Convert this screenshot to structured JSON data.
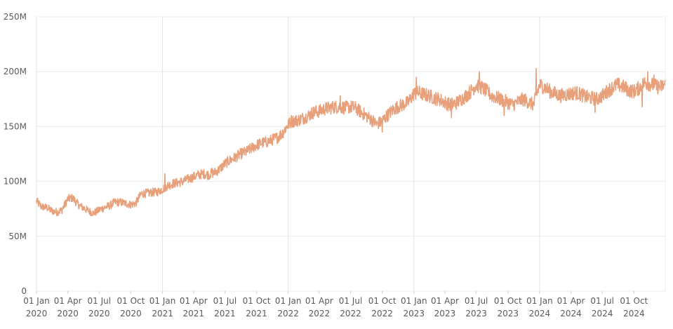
{
  "chart_data": {
    "type": "line",
    "y_tick_labels": [
      "0",
      "50M",
      "100M",
      "150M",
      "200M",
      "250M"
    ],
    "y_tick_values": [
      0,
      50,
      100,
      150,
      200,
      250
    ],
    "ylim": [
      0,
      250
    ],
    "y_unit": "M",
    "x_tick_labels": [
      {
        "top": "01 Jan",
        "bottom": "2020",
        "date": "2020-01-01"
      },
      {
        "top": "01 Apr",
        "bottom": "2020",
        "date": "2020-04-01"
      },
      {
        "top": "01 Jul",
        "bottom": "2020",
        "date": "2020-07-01"
      },
      {
        "top": "01 Oct",
        "bottom": "2020",
        "date": "2020-10-01"
      },
      {
        "top": "01 Jan",
        "bottom": "2021",
        "date": "2021-01-01"
      },
      {
        "top": "01 Apr",
        "bottom": "2021",
        "date": "2021-04-01"
      },
      {
        "top": "01 Jul",
        "bottom": "2021",
        "date": "2021-07-01"
      },
      {
        "top": "01 Oct",
        "bottom": "2021",
        "date": "2021-10-01"
      },
      {
        "top": "01 Jan",
        "bottom": "2022",
        "date": "2022-01-01"
      },
      {
        "top": "01 Apr",
        "bottom": "2022",
        "date": "2022-04-01"
      },
      {
        "top": "01 Jul",
        "bottom": "2022",
        "date": "2022-07-01"
      },
      {
        "top": "01 Oct",
        "bottom": "2022",
        "date": "2022-10-01"
      },
      {
        "top": "01 Jan",
        "bottom": "2023",
        "date": "2023-01-01"
      },
      {
        "top": "01 Apr",
        "bottom": "2023",
        "date": "2023-04-01"
      },
      {
        "top": "01 Jul",
        "bottom": "2023",
        "date": "2023-07-01"
      },
      {
        "top": "01 Oct",
        "bottom": "2023",
        "date": "2023-10-01"
      },
      {
        "top": "01 Jan",
        "bottom": "2024",
        "date": "2024-01-01"
      },
      {
        "top": "01 Apr",
        "bottom": "2024",
        "date": "2024-04-01"
      },
      {
        "top": "01 Jul",
        "bottom": "2024",
        "date": "2024-07-01"
      },
      {
        "top": "01 Oct",
        "bottom": "2024",
        "date": "2024-10-01"
      }
    ],
    "x_range": [
      "2020-01-01",
      "2024-12-31"
    ],
    "vertical_grid_years": [
      "2020-01-01",
      "2021-01-01",
      "2022-01-01",
      "2023-01-01",
      "2024-01-01"
    ],
    "grid": true,
    "legend": "none",
    "series": [
      {
        "color": "#e8a07a",
        "points": [
          [
            "2020-01-01",
            82
          ],
          [
            "2020-01-15",
            77
          ],
          [
            "2020-02-01",
            76
          ],
          [
            "2020-02-15",
            73
          ],
          [
            "2020-03-01",
            72
          ],
          [
            "2020-03-15",
            74
          ],
          [
            "2020-04-01",
            84
          ],
          [
            "2020-04-15",
            85
          ],
          [
            "2020-05-01",
            79
          ],
          [
            "2020-05-15",
            76
          ],
          [
            "2020-06-01",
            73
          ],
          [
            "2020-06-15",
            71
          ],
          [
            "2020-07-01",
            74
          ],
          [
            "2020-07-15",
            76
          ],
          [
            "2020-08-01",
            78
          ],
          [
            "2020-08-15",
            81
          ],
          [
            "2020-09-01",
            81
          ],
          [
            "2020-09-15",
            80
          ],
          [
            "2020-10-01",
            79
          ],
          [
            "2020-10-15",
            80
          ],
          [
            "2020-11-01",
            89
          ],
          [
            "2020-11-15",
            89
          ],
          [
            "2020-12-01",
            90
          ],
          [
            "2020-12-15",
            90
          ],
          [
            "2021-01-01",
            93
          ],
          [
            "2021-01-15",
            96
          ],
          [
            "2021-02-01",
            98
          ],
          [
            "2021-02-15",
            99
          ],
          [
            "2021-03-01",
            100
          ],
          [
            "2021-03-15",
            102
          ],
          [
            "2021-04-01",
            104
          ],
          [
            "2021-04-15",
            106
          ],
          [
            "2021-05-01",
            107
          ],
          [
            "2021-05-15",
            106
          ],
          [
            "2021-06-01",
            108
          ],
          [
            "2021-06-15",
            111
          ],
          [
            "2021-07-01",
            116
          ],
          [
            "2021-07-15",
            119
          ],
          [
            "2021-08-01",
            122
          ],
          [
            "2021-08-15",
            125
          ],
          [
            "2021-09-01",
            127
          ],
          [
            "2021-09-15",
            130
          ],
          [
            "2021-10-01",
            133
          ],
          [
            "2021-10-15",
            135
          ],
          [
            "2021-11-01",
            136
          ],
          [
            "2021-11-15",
            138
          ],
          [
            "2021-12-01",
            140
          ],
          [
            "2021-12-15",
            144
          ],
          [
            "2022-01-01",
            152
          ],
          [
            "2022-01-15",
            155
          ],
          [
            "2022-02-01",
            156
          ],
          [
            "2022-02-15",
            158
          ],
          [
            "2022-03-01",
            160
          ],
          [
            "2022-03-15",
            163
          ],
          [
            "2022-04-01",
            164
          ],
          [
            "2022-04-15",
            166
          ],
          [
            "2022-05-01",
            167
          ],
          [
            "2022-05-15",
            168
          ],
          [
            "2022-06-01",
            168
          ],
          [
            "2022-06-15",
            167
          ],
          [
            "2022-07-01",
            168
          ],
          [
            "2022-07-15",
            167
          ],
          [
            "2022-08-01",
            163
          ],
          [
            "2022-08-15",
            160
          ],
          [
            "2022-09-01",
            156
          ],
          [
            "2022-09-15",
            152
          ],
          [
            "2022-10-01",
            155
          ],
          [
            "2022-10-15",
            160
          ],
          [
            "2022-11-01",
            165
          ],
          [
            "2022-11-15",
            168
          ],
          [
            "2022-12-01",
            170
          ],
          [
            "2022-12-15",
            172
          ],
          [
            "2023-01-01",
            180
          ],
          [
            "2023-01-15",
            181
          ],
          [
            "2023-02-01",
            179
          ],
          [
            "2023-02-15",
            178
          ],
          [
            "2023-03-01",
            176
          ],
          [
            "2023-03-15",
            175
          ],
          [
            "2023-04-01",
            172
          ],
          [
            "2023-04-15",
            170
          ],
          [
            "2023-05-01",
            171
          ],
          [
            "2023-05-15",
            174
          ],
          [
            "2023-06-01",
            178
          ],
          [
            "2023-06-15",
            182
          ],
          [
            "2023-07-01",
            188
          ],
          [
            "2023-07-15",
            186
          ],
          [
            "2023-08-01",
            182
          ],
          [
            "2023-08-15",
            178
          ],
          [
            "2023-09-01",
            176
          ],
          [
            "2023-09-15",
            174
          ],
          [
            "2023-10-01",
            172
          ],
          [
            "2023-10-15",
            170
          ],
          [
            "2023-11-01",
            173
          ],
          [
            "2023-11-15",
            175
          ],
          [
            "2023-12-01",
            172
          ],
          [
            "2023-12-15",
            170
          ],
          [
            "2024-01-01",
            188
          ],
          [
            "2024-01-15",
            186
          ],
          [
            "2024-02-01",
            182
          ],
          [
            "2024-02-15",
            180
          ],
          [
            "2024-03-01",
            178
          ],
          [
            "2024-03-15",
            179
          ],
          [
            "2024-04-01",
            180
          ],
          [
            "2024-04-15",
            181
          ],
          [
            "2024-05-01",
            179
          ],
          [
            "2024-05-15",
            177
          ],
          [
            "2024-06-01",
            176
          ],
          [
            "2024-06-15",
            175
          ],
          [
            "2024-07-01",
            178
          ],
          [
            "2024-07-15",
            182
          ],
          [
            "2024-08-01",
            186
          ],
          [
            "2024-08-15",
            188
          ],
          [
            "2024-09-01",
            186
          ],
          [
            "2024-09-15",
            183
          ],
          [
            "2024-10-01",
            182
          ],
          [
            "2024-10-15",
            185
          ],
          [
            "2024-11-01",
            190
          ],
          [
            "2024-11-15",
            189
          ],
          [
            "2024-12-01",
            187
          ],
          [
            "2024-12-15",
            186
          ],
          [
            "2024-12-31",
            188
          ]
        ],
        "spikes": [
          [
            "2020-01-03",
            84
          ],
          [
            "2020-04-03",
            87
          ],
          [
            "2021-01-08",
            107
          ],
          [
            "2021-05-25",
            112
          ],
          [
            "2022-01-10",
            160
          ],
          [
            "2022-06-01",
            178
          ],
          [
            "2022-10-01",
            145
          ],
          [
            "2023-01-08",
            195
          ],
          [
            "2023-04-20",
            158
          ],
          [
            "2023-07-10",
            200
          ],
          [
            "2023-09-20",
            160
          ],
          [
            "2023-12-22",
            203
          ],
          [
            "2024-06-10",
            163
          ],
          [
            "2024-10-25",
            168
          ],
          [
            "2024-11-10",
            200
          ],
          [
            "2024-11-28",
            197
          ]
        ]
      }
    ]
  }
}
